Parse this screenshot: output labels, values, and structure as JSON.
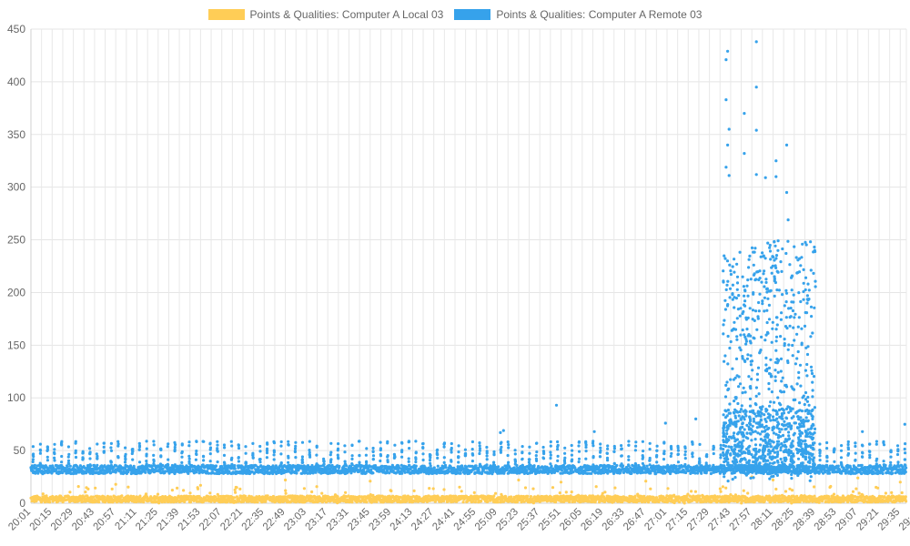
{
  "chart_data": {
    "type": "scatter",
    "title": "",
    "xlabel": "",
    "ylabel": "",
    "legend_position": "top",
    "grid": true,
    "ylim": [
      0,
      450
    ],
    "y_ticks": [
      "0",
      "50",
      "100",
      "150",
      "200",
      "250",
      "300",
      "350",
      "400",
      "450"
    ],
    "x_ticks": [
      "20:01",
      "20:15",
      "20:29",
      "20:43",
      "20:57",
      "21:11",
      "21:25",
      "21:39",
      "21:53",
      "22:07",
      "22:21",
      "22:35",
      "22:49",
      "23:03",
      "23:17",
      "23:31",
      "23:45",
      "23:59",
      "24:13",
      "24:27",
      "24:41",
      "24:55",
      "25:09",
      "25:23",
      "25:37",
      "25:51",
      "26:05",
      "26:19",
      "26:33",
      "26:47",
      "27:01",
      "27:15",
      "27:29",
      "27:43",
      "27:57",
      "28:11",
      "28:25",
      "28:39",
      "28:53",
      "29:07",
      "29:21",
      "29:35",
      "29:49"
    ],
    "series": [
      {
        "name": "Points & Qualities: Computer A Local 03",
        "color": "#FFCD56",
        "baseline": 4,
        "baseline_range": [
          0,
          12
        ],
        "spikes": [
          {
            "x": "20:57",
            "y": 18
          },
          {
            "x": "21:53",
            "y": 17
          },
          {
            "x": "22:49",
            "y": 22
          },
          {
            "x": "23:45",
            "y": 21
          },
          {
            "x": "25:23",
            "y": 22
          },
          {
            "x": "25:51",
            "y": 20
          },
          {
            "x": "26:47",
            "y": 21
          },
          {
            "x": "27:57",
            "y": 25
          },
          {
            "x": "28:11",
            "y": 22
          },
          {
            "x": "29:07",
            "y": 24
          },
          {
            "x": "29:35",
            "y": 20
          }
        ]
      },
      {
        "name": "Points & Qualities: Computer A Remote 03",
        "color": "#36A2EB",
        "baseline": 32,
        "baseline_range": [
          27,
          40
        ],
        "periodic_peak": 57,
        "high_activity_range": [
          "27:38",
          "28:39"
        ],
        "high_activity_values": [
          20,
          250
        ],
        "outliers": [
          {
            "x": "25:48",
            "y": 93
          },
          {
            "x": "27:00",
            "y": 76
          },
          {
            "x": "27:20",
            "y": 80
          },
          {
            "x": "27:40",
            "y": 421
          },
          {
            "x": "27:41",
            "y": 429
          },
          {
            "x": "27:40",
            "y": 383
          },
          {
            "x": "27:42",
            "y": 355
          },
          {
            "x": "27:41",
            "y": 340
          },
          {
            "x": "27:40",
            "y": 319
          },
          {
            "x": "27:42",
            "y": 311
          },
          {
            "x": "27:52",
            "y": 370
          },
          {
            "x": "27:52",
            "y": 332
          },
          {
            "x": "28:00",
            "y": 438
          },
          {
            "x": "28:00",
            "y": 395
          },
          {
            "x": "28:00",
            "y": 354
          },
          {
            "x": "28:00",
            "y": 312
          },
          {
            "x": "28:06",
            "y": 309
          },
          {
            "x": "28:13",
            "y": 325
          },
          {
            "x": "28:13",
            "y": 310
          },
          {
            "x": "28:20",
            "y": 340
          },
          {
            "x": "28:20",
            "y": 295
          },
          {
            "x": "28:21",
            "y": 269
          },
          {
            "x": "29:10",
            "y": 68
          },
          {
            "x": "29:38",
            "y": 75
          },
          {
            "x": "29:40",
            "y": 74
          },
          {
            "x": "25:11",
            "y": 67
          },
          {
            "x": "25:13",
            "y": 69
          },
          {
            "x": "26:13",
            "y": 68
          }
        ]
      }
    ]
  }
}
